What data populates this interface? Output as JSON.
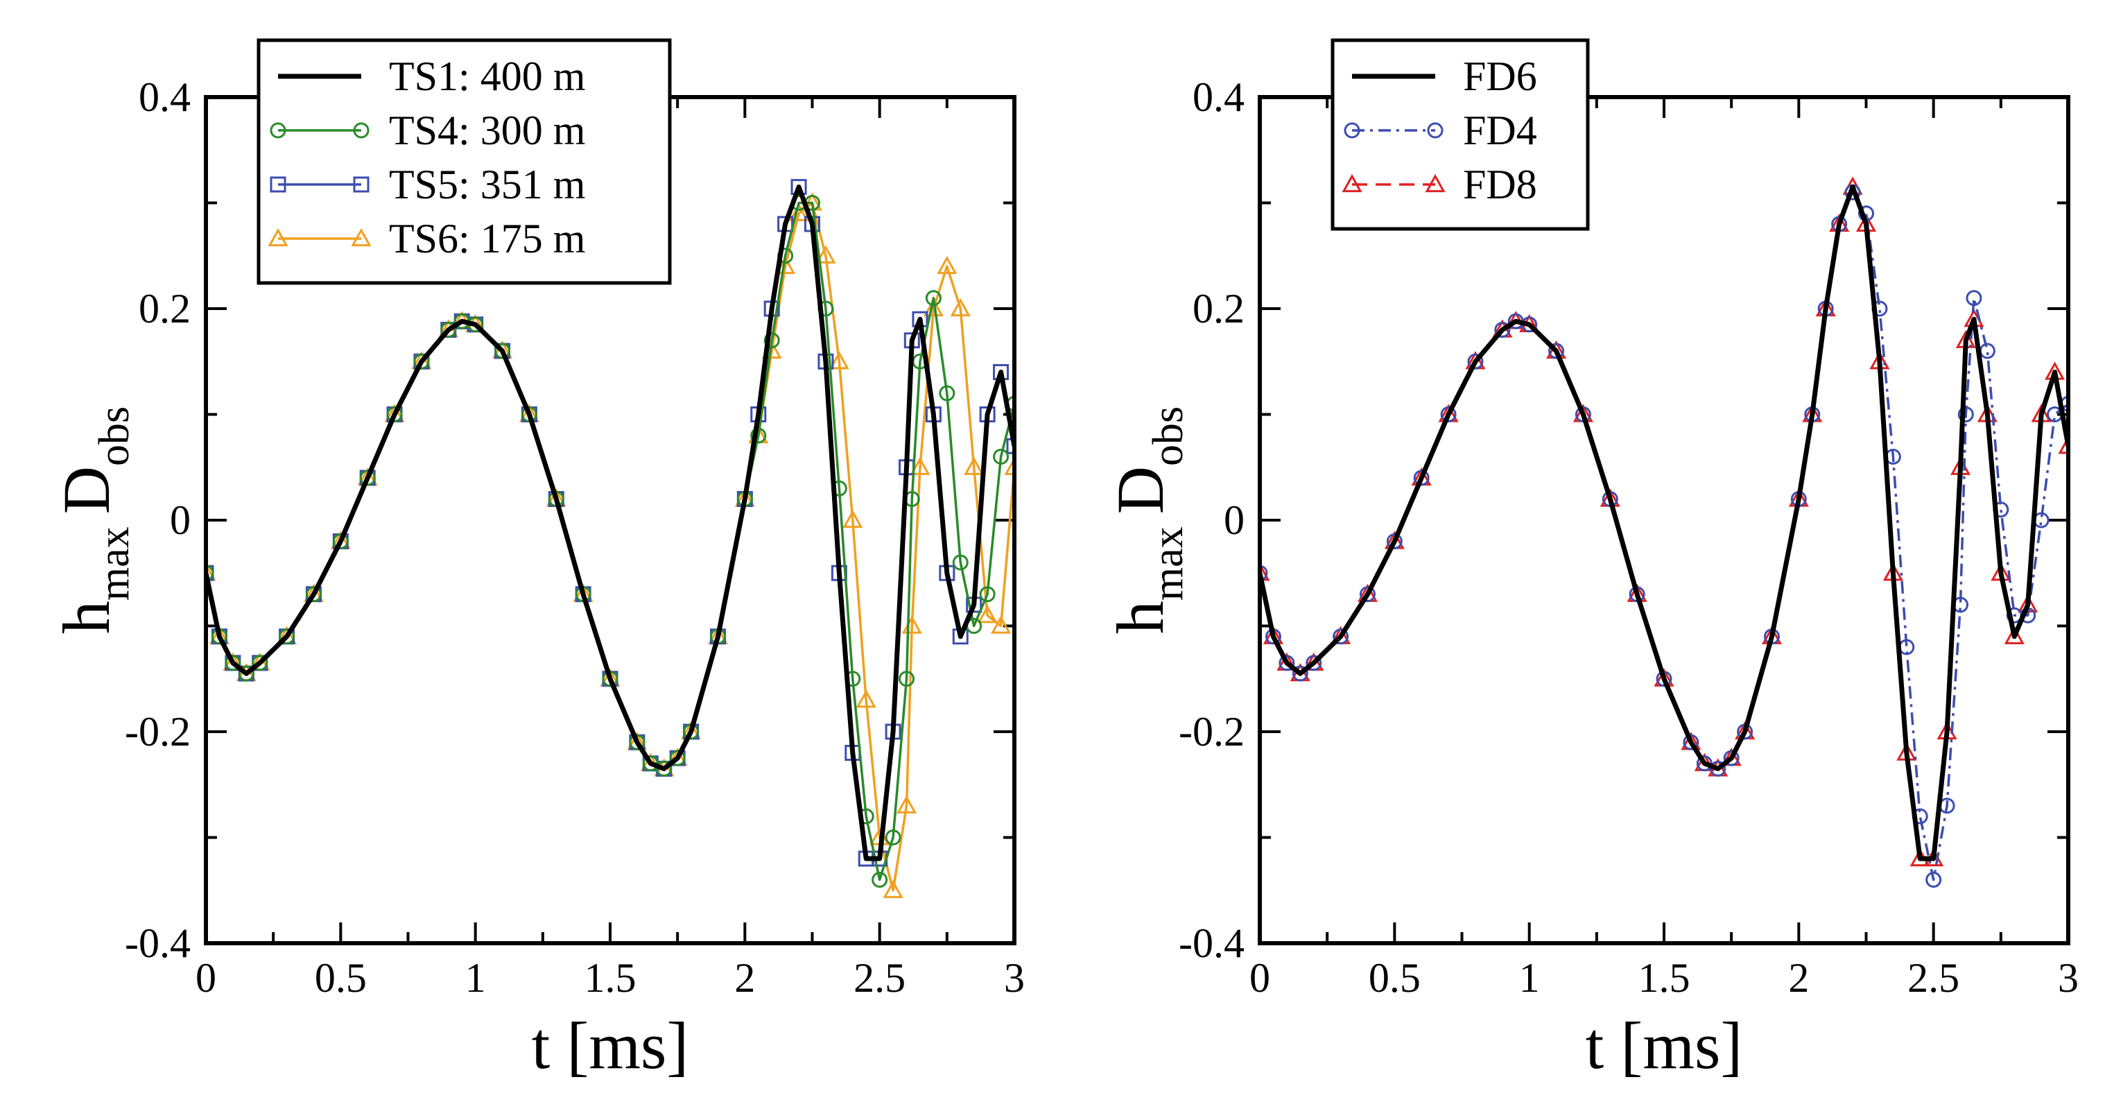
{
  "chart_data": [
    {
      "type": "line",
      "title": "",
      "xlabel": "t [ms]",
      "ylabel": {
        "main": "h",
        "sub_main": "max",
        "second": "D",
        "sub_second": "obs"
      },
      "xlim": [
        0,
        3
      ],
      "ylim": [
        -0.4,
        0.4
      ],
      "xticks": [
        "0",
        "0.5",
        "1",
        "1.5",
        "2",
        "2.5",
        "3"
      ],
      "yticks": [
        "-0.4",
        "-0.2",
        "0",
        "0.2",
        "0.4"
      ],
      "legend_position": "top-left",
      "series": [
        {
          "name": "TS1: 400 m",
          "color": "#000000",
          "marker": "none",
          "dash": "solid",
          "x": [
            0,
            0.05,
            0.1,
            0.15,
            0.2,
            0.3,
            0.4,
            0.5,
            0.6,
            0.7,
            0.8,
            0.9,
            0.95,
            1.0,
            1.1,
            1.2,
            1.3,
            1.4,
            1.5,
            1.6,
            1.65,
            1.7,
            1.75,
            1.8,
            1.9,
            2.0,
            2.05,
            2.1,
            2.15,
            2.2,
            2.25,
            2.3,
            2.35,
            2.4,
            2.45,
            2.5,
            2.55,
            2.6,
            2.62,
            2.65,
            2.7,
            2.75,
            2.8,
            2.85,
            2.9,
            2.95,
            3.0
          ],
          "y": [
            -0.05,
            -0.11,
            -0.135,
            -0.145,
            -0.135,
            -0.11,
            -0.07,
            -0.02,
            0.04,
            0.1,
            0.15,
            0.18,
            0.188,
            0.185,
            0.16,
            0.1,
            0.02,
            -0.07,
            -0.15,
            -0.21,
            -0.23,
            -0.235,
            -0.225,
            -0.2,
            -0.11,
            0.02,
            0.1,
            0.2,
            0.28,
            0.315,
            0.28,
            0.15,
            -0.05,
            -0.22,
            -0.32,
            -0.32,
            -0.2,
            0.05,
            0.17,
            0.19,
            0.1,
            -0.05,
            -0.11,
            -0.08,
            0.1,
            0.14,
            0.07
          ]
        },
        {
          "name": "TS4: 300 m",
          "color": "#2a8a2a",
          "marker": "circle",
          "dash": "solid",
          "x": [
            0,
            0.05,
            0.1,
            0.15,
            0.2,
            0.3,
            0.4,
            0.5,
            0.6,
            0.7,
            0.8,
            0.9,
            0.95,
            1.0,
            1.1,
            1.2,
            1.3,
            1.4,
            1.5,
            1.6,
            1.65,
            1.7,
            1.75,
            1.8,
            1.9,
            2.0,
            2.05,
            2.1,
            2.15,
            2.2,
            2.25,
            2.3,
            2.35,
            2.4,
            2.45,
            2.5,
            2.55,
            2.6,
            2.62,
            2.65,
            2.7,
            2.75,
            2.8,
            2.85,
            2.9,
            2.95,
            3.0
          ],
          "y": [
            -0.05,
            -0.11,
            -0.135,
            -0.145,
            -0.135,
            -0.11,
            -0.07,
            -0.02,
            0.04,
            0.1,
            0.15,
            0.18,
            0.188,
            0.185,
            0.16,
            0.1,
            0.02,
            -0.07,
            -0.15,
            -0.21,
            -0.23,
            -0.235,
            -0.225,
            -0.2,
            -0.11,
            0.02,
            0.08,
            0.17,
            0.25,
            0.3,
            0.3,
            0.2,
            0.03,
            -0.15,
            -0.28,
            -0.34,
            -0.3,
            -0.15,
            0.02,
            0.15,
            0.21,
            0.12,
            -0.04,
            -0.1,
            -0.07,
            0.06,
            0.11
          ]
        },
        {
          "name": "TS5: 351 m",
          "color": "#3b4db0",
          "marker": "square",
          "dash": "solid",
          "x": [
            0,
            0.05,
            0.1,
            0.15,
            0.2,
            0.3,
            0.4,
            0.5,
            0.6,
            0.7,
            0.8,
            0.9,
            0.95,
            1.0,
            1.1,
            1.2,
            1.3,
            1.4,
            1.5,
            1.6,
            1.65,
            1.7,
            1.75,
            1.8,
            1.9,
            2.0,
            2.05,
            2.1,
            2.15,
            2.2,
            2.25,
            2.3,
            2.35,
            2.4,
            2.45,
            2.5,
            2.55,
            2.6,
            2.62,
            2.65,
            2.7,
            2.75,
            2.8,
            2.85,
            2.9,
            2.95,
            3.0
          ],
          "y": [
            -0.05,
            -0.11,
            -0.135,
            -0.145,
            -0.135,
            -0.11,
            -0.07,
            -0.02,
            0.04,
            0.1,
            0.15,
            0.18,
            0.188,
            0.185,
            0.16,
            0.1,
            0.02,
            -0.07,
            -0.15,
            -0.21,
            -0.23,
            -0.235,
            -0.225,
            -0.2,
            -0.11,
            0.02,
            0.1,
            0.2,
            0.28,
            0.315,
            0.28,
            0.15,
            -0.05,
            -0.22,
            -0.32,
            -0.32,
            -0.2,
            0.05,
            0.17,
            0.19,
            0.1,
            -0.05,
            -0.11,
            -0.08,
            0.1,
            0.14,
            0.07
          ]
        },
        {
          "name": "TS6: 175 m",
          "color": "#f0a020",
          "marker": "triangle",
          "dash": "solid",
          "x": [
            0,
            0.05,
            0.1,
            0.15,
            0.2,
            0.3,
            0.4,
            0.5,
            0.6,
            0.7,
            0.8,
            0.9,
            0.95,
            1.0,
            1.1,
            1.2,
            1.3,
            1.4,
            1.5,
            1.6,
            1.65,
            1.7,
            1.75,
            1.8,
            1.9,
            2.0,
            2.05,
            2.1,
            2.15,
            2.2,
            2.25,
            2.3,
            2.35,
            2.4,
            2.45,
            2.5,
            2.55,
            2.6,
            2.62,
            2.65,
            2.7,
            2.75,
            2.8,
            2.85,
            2.9,
            2.95,
            3.0
          ],
          "y": [
            -0.05,
            -0.11,
            -0.135,
            -0.145,
            -0.135,
            -0.11,
            -0.07,
            -0.02,
            0.04,
            0.1,
            0.15,
            0.18,
            0.188,
            0.185,
            0.16,
            0.1,
            0.02,
            -0.07,
            -0.15,
            -0.21,
            -0.23,
            -0.235,
            -0.225,
            -0.2,
            -0.11,
            0.02,
            0.08,
            0.16,
            0.24,
            0.29,
            0.3,
            0.25,
            0.15,
            0.0,
            -0.17,
            -0.3,
            -0.35,
            -0.27,
            -0.1,
            0.05,
            0.2,
            0.24,
            0.2,
            0.05,
            -0.09,
            -0.1,
            0.05
          ]
        }
      ]
    },
    {
      "type": "line",
      "title": "",
      "xlabel": "t [ms]",
      "ylabel": {
        "main": "h",
        "sub_main": "max",
        "second": "D",
        "sub_second": "obs"
      },
      "xlim": [
        0,
        3
      ],
      "ylim": [
        -0.4,
        0.4
      ],
      "xticks": [
        "0",
        "0.5",
        "1",
        "1.5",
        "2",
        "2.5",
        "3"
      ],
      "yticks": [
        "-0.4",
        "-0.2",
        "0",
        "0.2",
        "0.4"
      ],
      "legend_position": "top-left",
      "series": [
        {
          "name": "FD6",
          "color": "#000000",
          "marker": "none",
          "dash": "solid",
          "x": [
            0,
            0.05,
            0.1,
            0.15,
            0.2,
            0.3,
            0.4,
            0.5,
            0.6,
            0.7,
            0.8,
            0.9,
            0.95,
            1.0,
            1.1,
            1.2,
            1.3,
            1.4,
            1.5,
            1.6,
            1.65,
            1.7,
            1.75,
            1.8,
            1.9,
            2.0,
            2.05,
            2.1,
            2.15,
            2.2,
            2.25,
            2.3,
            2.35,
            2.4,
            2.45,
            2.5,
            2.55,
            2.6,
            2.62,
            2.65,
            2.7,
            2.75,
            2.8,
            2.85,
            2.9,
            2.95,
            3.0
          ],
          "y": [
            -0.05,
            -0.11,
            -0.135,
            -0.145,
            -0.135,
            -0.11,
            -0.07,
            -0.02,
            0.04,
            0.1,
            0.15,
            0.18,
            0.188,
            0.185,
            0.16,
            0.1,
            0.02,
            -0.07,
            -0.15,
            -0.21,
            -0.23,
            -0.235,
            -0.225,
            -0.2,
            -0.11,
            0.02,
            0.1,
            0.2,
            0.28,
            0.315,
            0.28,
            0.15,
            -0.05,
            -0.22,
            -0.32,
            -0.32,
            -0.2,
            0.05,
            0.17,
            0.19,
            0.1,
            -0.05,
            -0.11,
            -0.08,
            0.1,
            0.14,
            0.07
          ]
        },
        {
          "name": "FD4",
          "color": "#3b4db0",
          "marker": "circle",
          "dash": "dashdot",
          "x": [
            0,
            0.05,
            0.1,
            0.15,
            0.2,
            0.3,
            0.4,
            0.5,
            0.6,
            0.7,
            0.8,
            0.9,
            0.95,
            1.0,
            1.1,
            1.2,
            1.3,
            1.4,
            1.5,
            1.6,
            1.65,
            1.7,
            1.75,
            1.8,
            1.9,
            2.0,
            2.05,
            2.1,
            2.15,
            2.2,
            2.25,
            2.3,
            2.35,
            2.4,
            2.45,
            2.5,
            2.55,
            2.6,
            2.62,
            2.65,
            2.7,
            2.75,
            2.8,
            2.85,
            2.9,
            2.95,
            3.0
          ],
          "y": [
            -0.05,
            -0.11,
            -0.135,
            -0.145,
            -0.135,
            -0.11,
            -0.07,
            -0.02,
            0.04,
            0.1,
            0.15,
            0.18,
            0.188,
            0.185,
            0.16,
            0.1,
            0.02,
            -0.07,
            -0.15,
            -0.21,
            -0.23,
            -0.235,
            -0.225,
            -0.2,
            -0.11,
            0.02,
            0.1,
            0.2,
            0.28,
            0.31,
            0.29,
            0.2,
            0.06,
            -0.12,
            -0.28,
            -0.34,
            -0.27,
            -0.08,
            0.1,
            0.21,
            0.16,
            0.01,
            -0.09,
            -0.09,
            0.0,
            0.1,
            0.11
          ]
        },
        {
          "name": "FD8",
          "color": "#e02020",
          "marker": "triangle",
          "dash": "dashed",
          "x": [
            0,
            0.05,
            0.1,
            0.15,
            0.2,
            0.3,
            0.4,
            0.5,
            0.6,
            0.7,
            0.8,
            0.9,
            0.95,
            1.0,
            1.1,
            1.2,
            1.3,
            1.4,
            1.5,
            1.6,
            1.65,
            1.7,
            1.75,
            1.8,
            1.9,
            2.0,
            2.05,
            2.1,
            2.15,
            2.2,
            2.25,
            2.3,
            2.35,
            2.4,
            2.45,
            2.5,
            2.55,
            2.6,
            2.62,
            2.65,
            2.7,
            2.75,
            2.8,
            2.85,
            2.9,
            2.95,
            3.0
          ],
          "y": [
            -0.05,
            -0.11,
            -0.135,
            -0.145,
            -0.135,
            -0.11,
            -0.07,
            -0.02,
            0.04,
            0.1,
            0.15,
            0.18,
            0.188,
            0.185,
            0.16,
            0.1,
            0.02,
            -0.07,
            -0.15,
            -0.21,
            -0.23,
            -0.235,
            -0.225,
            -0.2,
            -0.11,
            0.02,
            0.1,
            0.2,
            0.28,
            0.315,
            0.28,
            0.15,
            -0.05,
            -0.22,
            -0.32,
            -0.32,
            -0.2,
            0.05,
            0.17,
            0.19,
            0.1,
            -0.05,
            -0.11,
            -0.08,
            0.1,
            0.14,
            0.07
          ]
        }
      ]
    }
  ]
}
